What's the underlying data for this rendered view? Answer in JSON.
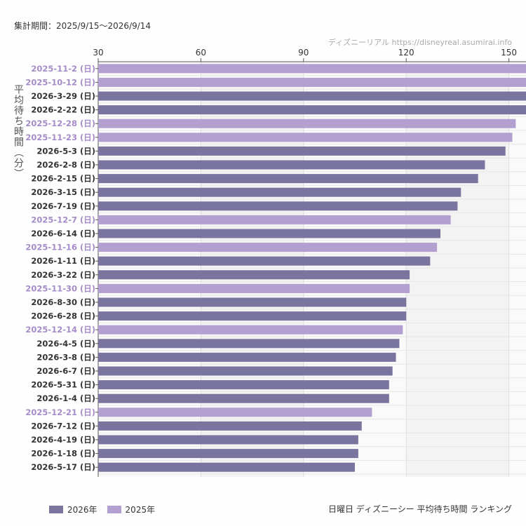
{
  "header": {
    "period": "集計期間：2025/9/15〜2026/9/14",
    "credit": "ディズニーリアル https://disneyreal.asumirai.info"
  },
  "footer": {
    "title": "日曜日 ディズニーシー 平均待ち時間 ランキング"
  },
  "colors": {
    "2026年": "#7a759f",
    "2025年": "#b39fd0"
  },
  "chart_data": {
    "type": "bar",
    "orientation": "horizontal",
    "title": "",
    "ylabel": "平均待ち時間（分）",
    "xlim": [
      30,
      155
    ],
    "xticks": [
      30,
      60,
      90,
      120,
      150
    ],
    "grid": true,
    "legend_position": "bottom-left",
    "legend": [
      "2026年",
      "2025年"
    ],
    "bars": [
      {
        "label": "2025-11-2 (日)",
        "value": 156,
        "series": "2025年"
      },
      {
        "label": "2025-10-12 (日)",
        "value": 155,
        "series": "2025年"
      },
      {
        "label": "2026-3-29 (日)",
        "value": 155,
        "series": "2026年"
      },
      {
        "label": "2026-2-22 (日)",
        "value": 155,
        "series": "2026年"
      },
      {
        "label": "2025-12-28 (日)",
        "value": 152,
        "series": "2025年"
      },
      {
        "label": "2025-11-23 (日)",
        "value": 151,
        "series": "2025年"
      },
      {
        "label": "2026-5-3 (日)",
        "value": 149,
        "series": "2026年"
      },
      {
        "label": "2026-2-8 (日)",
        "value": 143,
        "series": "2026年"
      },
      {
        "label": "2026-2-15 (日)",
        "value": 141,
        "series": "2026年"
      },
      {
        "label": "2026-3-15 (日)",
        "value": 136,
        "series": "2026年"
      },
      {
        "label": "2026-7-19 (日)",
        "value": 135,
        "series": "2026年"
      },
      {
        "label": "2025-12-7 (日)",
        "value": 133,
        "series": "2025年"
      },
      {
        "label": "2026-6-14 (日)",
        "value": 130,
        "series": "2026年"
      },
      {
        "label": "2025-11-16 (日)",
        "value": 129,
        "series": "2025年"
      },
      {
        "label": "2026-1-11 (日)",
        "value": 127,
        "series": "2026年"
      },
      {
        "label": "2026-3-22 (日)",
        "value": 121,
        "series": "2026年"
      },
      {
        "label": "2025-11-30 (日)",
        "value": 121,
        "series": "2025年"
      },
      {
        "label": "2026-8-30 (日)",
        "value": 120,
        "series": "2026年"
      },
      {
        "label": "2026-6-28 (日)",
        "value": 120,
        "series": "2026年"
      },
      {
        "label": "2025-12-14 (日)",
        "value": 119,
        "series": "2025年"
      },
      {
        "label": "2026-4-5 (日)",
        "value": 118,
        "series": "2026年"
      },
      {
        "label": "2026-3-8 (日)",
        "value": 117,
        "series": "2026年"
      },
      {
        "label": "2026-6-7 (日)",
        "value": 116,
        "series": "2026年"
      },
      {
        "label": "2026-5-31 (日)",
        "value": 115,
        "series": "2026年"
      },
      {
        "label": "2026-1-4 (日)",
        "value": 115,
        "series": "2026年"
      },
      {
        "label": "2025-12-21 (日)",
        "value": 110,
        "series": "2025年"
      },
      {
        "label": "2026-7-12 (日)",
        "value": 107,
        "series": "2026年"
      },
      {
        "label": "2026-4-19 (日)",
        "value": 106,
        "series": "2026年"
      },
      {
        "label": "2026-1-18 (日)",
        "value": 106,
        "series": "2026年"
      },
      {
        "label": "2026-5-17 (日)",
        "value": 105,
        "series": "2026年"
      }
    ]
  }
}
